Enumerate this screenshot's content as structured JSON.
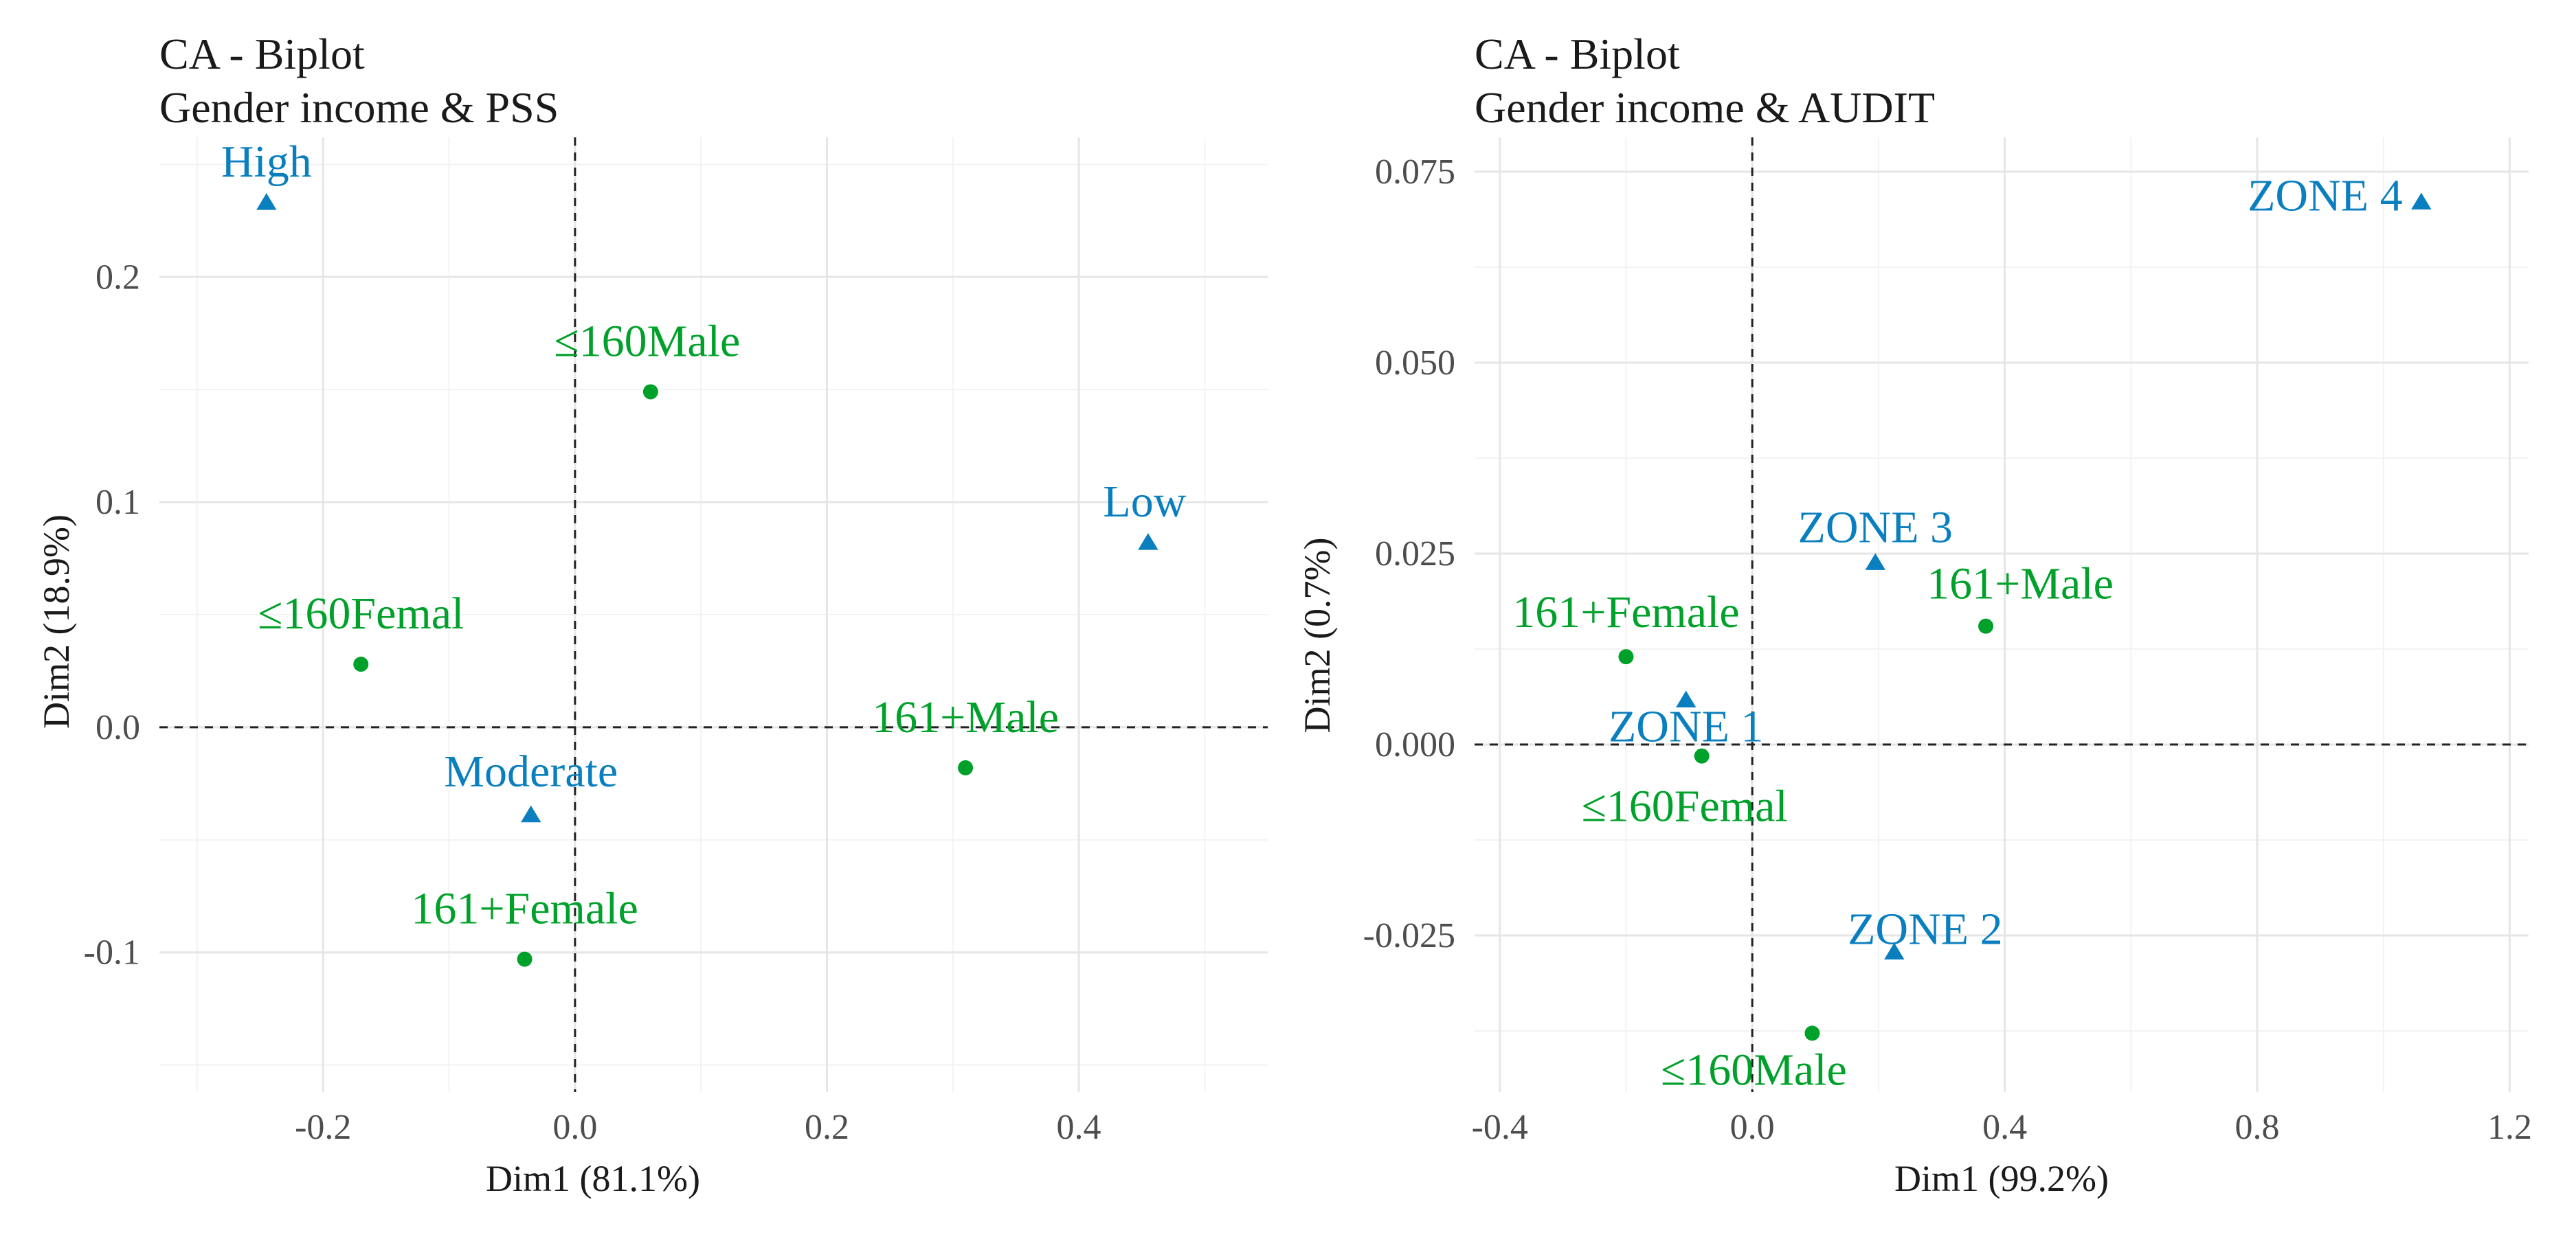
{
  "colors": {
    "row": "#00a12a",
    "col": "#0a7fbf"
  },
  "chart_data": [
    {
      "type": "scatter",
      "title": "CA - Biplot",
      "subtitle": "Gender income & PSS",
      "xlabel": "Dim1 (81.1%)",
      "ylabel": "Dim2 (18.9%)",
      "xlim": [
        -0.33,
        0.55
      ],
      "ylim": [
        -0.162,
        0.262
      ],
      "xticks": [
        -0.2,
        0.0,
        0.2,
        0.4
      ],
      "xtick_labels": [
        "-0.2",
        "0.0",
        "0.2",
        "0.4"
      ],
      "yticks": [
        -0.1,
        0.0,
        0.1,
        0.2
      ],
      "ytick_labels": [
        "-0.1",
        "0.0",
        "0.1",
        "0.2"
      ],
      "series": [
        {
          "name": "rows",
          "marker": "circle",
          "color_key": "row",
          "points": [
            {
              "label": "≤160Male",
              "x": 0.06,
              "y": 0.149
            },
            {
              "label": "≤160Femal",
              "x": -0.17,
              "y": 0.028
            },
            {
              "label": "161+Male",
              "x": 0.31,
              "y": -0.018
            },
            {
              "label": "161+Female",
              "x": -0.04,
              "y": -0.103
            }
          ]
        },
        {
          "name": "columns",
          "marker": "triangle",
          "color_key": "col",
          "points": [
            {
              "label": "High",
              "x": -0.245,
              "y": 0.233
            },
            {
              "label": "Low",
              "x": 0.455,
              "y": 0.082
            },
            {
              "label": "Moderate",
              "x": -0.035,
              "y": -0.039
            }
          ]
        }
      ]
    },
    {
      "type": "scatter",
      "title": "CA - Biplot",
      "subtitle": "Gender income & AUDIT",
      "xlabel": "Dim1 (99.2%)",
      "ylabel": "Dim2 (0.7%)",
      "xlim": [
        -0.44,
        1.23
      ],
      "ylim": [
        -0.0455,
        0.0795
      ],
      "xticks": [
        -0.4,
        0.0,
        0.4,
        0.8,
        1.2
      ],
      "xtick_labels": [
        "-0.4",
        "0.0",
        "0.4",
        "0.8",
        "1.2"
      ],
      "yticks": [
        -0.025,
        0.0,
        0.025,
        0.05,
        0.075
      ],
      "ytick_labels": [
        "-0.025",
        "0.000",
        "0.025",
        "0.050",
        "0.075"
      ],
      "series": [
        {
          "name": "rows",
          "marker": "circle",
          "color_key": "row",
          "points": [
            {
              "label": "161+Female",
              "x": -0.2,
              "y": 0.0115
            },
            {
              "label": "161+Male",
              "x": 0.37,
              "y": 0.0155
            },
            {
              "label": "≤160Femal",
              "x": -0.08,
              "y": -0.0015
            },
            {
              "label": "≤160Male",
              "x": 0.095,
              "y": -0.0378
            }
          ]
        },
        {
          "name": "columns",
          "marker": "triangle",
          "color_key": "col",
          "points": [
            {
              "label": "ZONE 4",
              "x": 1.06,
              "y": 0.071
            },
            {
              "label": "ZONE 3",
              "x": 0.195,
              "y": 0.0238
            },
            {
              "label": "ZONE 1",
              "x": -0.105,
              "y": 0.0058
            },
            {
              "label": "ZONE 2",
              "x": 0.225,
              "y": -0.0272
            }
          ]
        }
      ]
    }
  ]
}
